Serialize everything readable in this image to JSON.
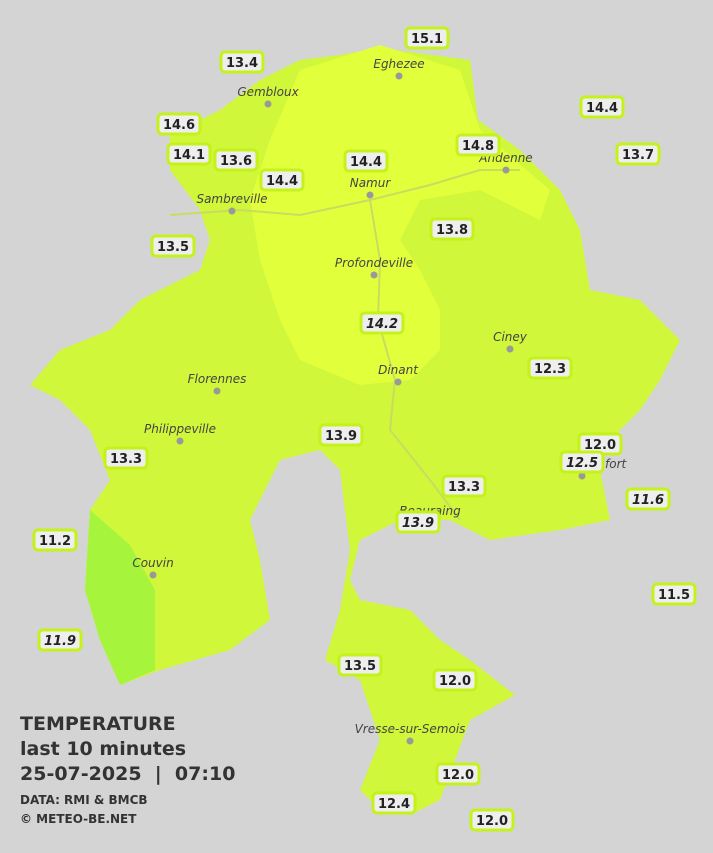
{
  "map": {
    "title": "TEMPERATURE",
    "subtitle": "last 10 minutes",
    "datetime": "25-07-2025  |  07:10",
    "source": "DATA: RMI & BMCB",
    "credit": "© METEO-BE.NET",
    "cities": [
      "Eghezee",
      "Gembloux",
      "Andenne",
      "Namur",
      "Sambreville",
      "Profondeville",
      "Ciney",
      "Dinant",
      "Florennes",
      "Philippeville",
      "Rochefort",
      "Beauraing",
      "Couvin",
      "Vresse-sur-Semois"
    ],
    "stations": [
      {
        "value": "15.1",
        "italic": false
      },
      {
        "value": "13.4",
        "italic": false
      },
      {
        "value": "14.4",
        "italic": false
      },
      {
        "value": "14.6",
        "italic": false
      },
      {
        "value": "14.8",
        "italic": false
      },
      {
        "value": "14.1",
        "italic": false
      },
      {
        "value": "13.6",
        "italic": false
      },
      {
        "value": "14.4",
        "italic": false
      },
      {
        "value": "13.7",
        "italic": false
      },
      {
        "value": "14.4",
        "italic": false
      },
      {
        "value": "13.5",
        "italic": false
      },
      {
        "value": "13.8",
        "italic": false
      },
      {
        "value": "14.2",
        "italic": true
      },
      {
        "value": "12.3",
        "italic": false
      },
      {
        "value": "13.9",
        "italic": false
      },
      {
        "value": "12.0",
        "italic": false
      },
      {
        "value": "12.5",
        "italic": true
      },
      {
        "value": "13.3",
        "italic": false
      },
      {
        "value": "13.3",
        "italic": false
      },
      {
        "value": "11.6",
        "italic": true
      },
      {
        "value": "13.9",
        "italic": true
      },
      {
        "value": "11.2",
        "italic": false
      },
      {
        "value": "11.5",
        "italic": false
      },
      {
        "value": "11.9",
        "italic": true
      },
      {
        "value": "13.5",
        "italic": false
      },
      {
        "value": "12.0",
        "italic": false
      },
      {
        "value": "12.0",
        "italic": false
      },
      {
        "value": "12.4",
        "italic": false
      },
      {
        "value": "12.0",
        "italic": false
      }
    ]
  }
}
